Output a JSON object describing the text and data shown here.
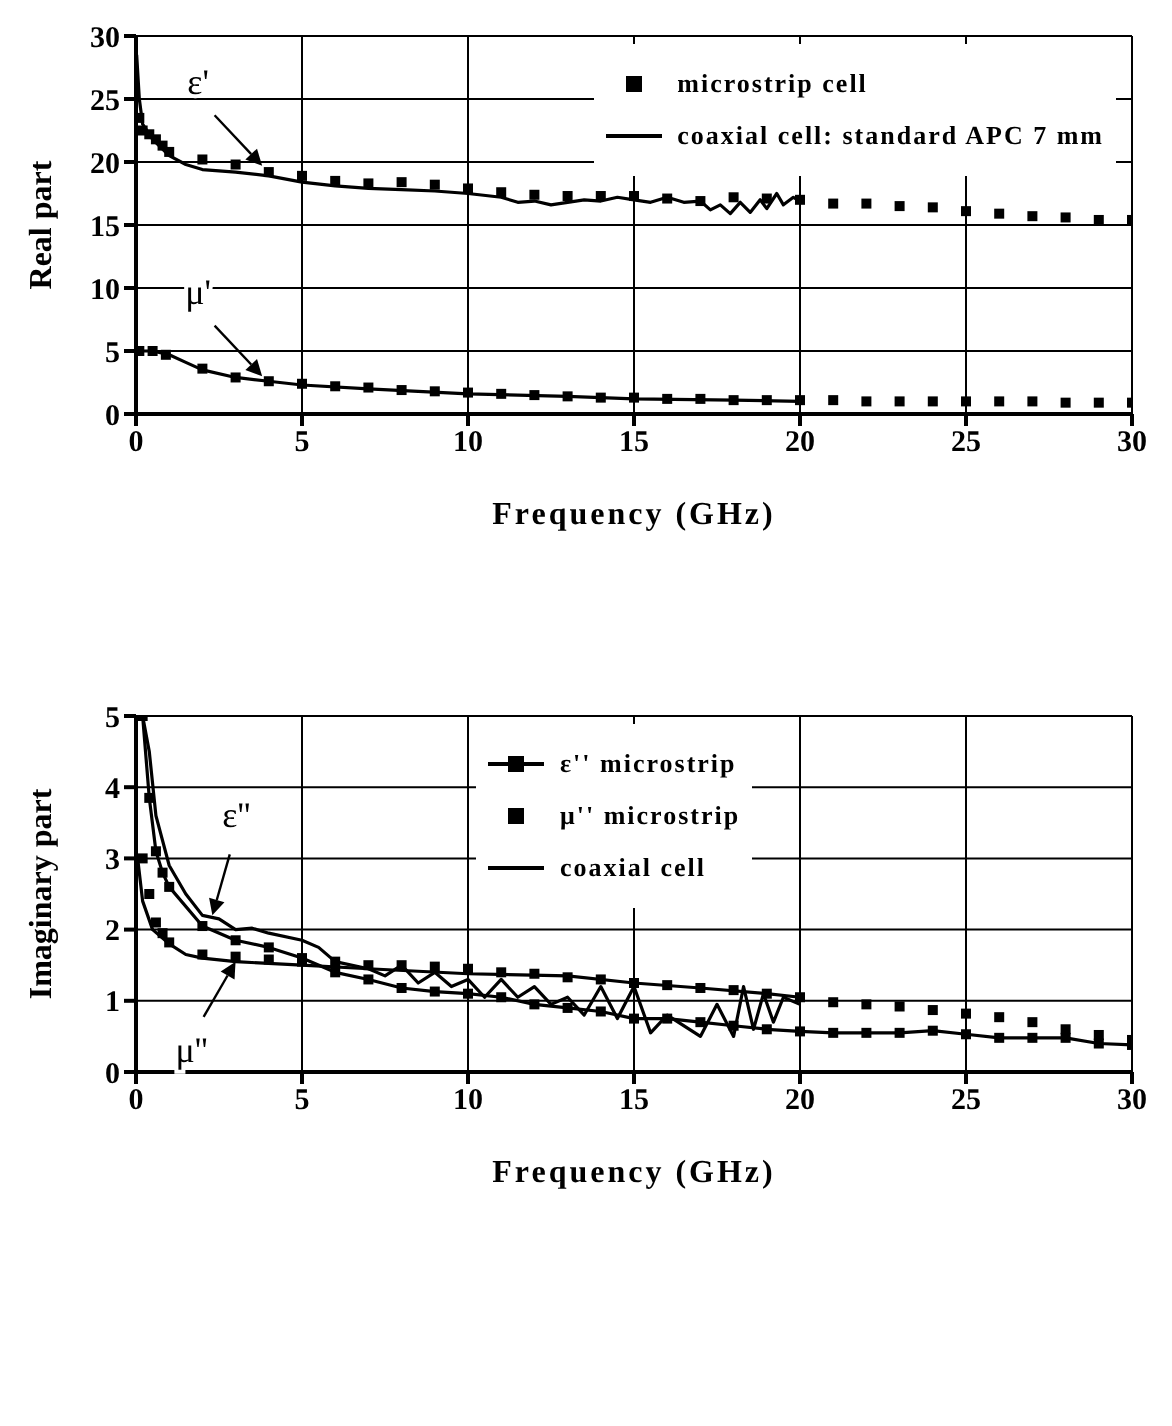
{
  "chart_data": [
    {
      "type": "scatter",
      "xlabel": "Frequency (GHz)",
      "ylabel": "Real part",
      "xlim": [
        0,
        30
      ],
      "ylim": [
        0,
        30
      ],
      "xticks": [
        0,
        5,
        10,
        15,
        20,
        25,
        30
      ],
      "yticks": [
        0,
        5,
        10,
        15,
        20,
        25,
        30
      ],
      "grid": true,
      "legend": "top right",
      "annotations": [
        {
          "text": "ε'",
          "x": 3.8,
          "y": 19.7
        },
        {
          "text": "μ'",
          "x": 3.8,
          "y": 3.0
        }
      ],
      "series": [
        {
          "name": "microstrip cell",
          "marker": "square",
          "color": "#000000",
          "x": [
            0.1,
            0.2,
            0.4,
            0.6,
            0.8,
            1,
            2,
            3,
            4,
            5,
            6,
            7,
            8,
            9,
            10,
            11,
            12,
            13,
            14,
            15,
            16,
            17,
            18,
            19,
            20,
            21,
            22,
            23,
            24,
            25,
            26,
            27,
            28,
            29,
            30
          ],
          "values": [
            23.5,
            22.5,
            22.2,
            21.8,
            21.3,
            20.8,
            20.2,
            19.8,
            19.2,
            18.9,
            18.5,
            18.3,
            18.4,
            18.2,
            17.9,
            17.6,
            17.4,
            17.3,
            17.3,
            17.3,
            17.1,
            16.9,
            17.2,
            17.1,
            17.0,
            16.7,
            16.7,
            16.5,
            16.4,
            16.1,
            15.9,
            15.7,
            15.6,
            15.4,
            15.4
          ]
        },
        {
          "marker": "square",
          "color": "#000000",
          "x": [
            0.1,
            0.5,
            0.9,
            2,
            3,
            4,
            5,
            6,
            7,
            8,
            9,
            10,
            11,
            12,
            13,
            14,
            15,
            16,
            17,
            18,
            19,
            20,
            21,
            22,
            23,
            24,
            25,
            26,
            27,
            28,
            29,
            30
          ],
          "values": [
            5.0,
            5.0,
            4.7,
            3.6,
            2.9,
            2.6,
            2.4,
            2.2,
            2.1,
            1.9,
            1.8,
            1.7,
            1.6,
            1.5,
            1.4,
            1.3,
            1.3,
            1.2,
            1.2,
            1.1,
            1.1,
            1.1,
            1.1,
            1.0,
            1.0,
            1.0,
            1.0,
            1.0,
            1.0,
            0.9,
            0.9,
            0.9
          ]
        },
        {
          "name": "coaxial cell: standard APC 7 mm",
          "type": "line",
          "marker": "none",
          "line_style": "solid",
          "color": "#000000",
          "x": [
            0.02,
            0.1,
            0.2,
            0.5,
            1,
            1.5,
            2,
            3,
            4,
            5,
            6,
            7,
            8,
            9,
            10,
            11,
            11.5,
            12,
            12.5,
            13,
            13.5,
            14,
            14.5,
            15,
            15.5,
            16,
            16.5,
            17,
            17.3,
            17.6,
            17.9,
            18.2,
            18.5,
            18.8,
            19,
            19.3,
            19.5,
            19.8,
            20
          ],
          "values": [
            28.5,
            25,
            23,
            21.8,
            20.5,
            19.8,
            19.4,
            19.2,
            18.9,
            18.4,
            18.1,
            17.9,
            17.8,
            17.7,
            17.5,
            17.2,
            16.8,
            16.9,
            16.6,
            16.8,
            17.0,
            16.9,
            17.2,
            17.0,
            16.8,
            17.2,
            16.8,
            16.9,
            16.2,
            16.6,
            15.9,
            16.8,
            16.0,
            17.0,
            16.3,
            17.5,
            16.6,
            17.2,
            16.9
          ]
        },
        {
          "type": "line",
          "marker": "none",
          "line_style": "solid",
          "color": "#000000",
          "x": [
            0,
            0.5,
            1,
            1.5,
            2,
            3,
            4,
            5,
            7,
            10,
            13,
            15,
            18,
            20
          ],
          "values": [
            5.0,
            5.0,
            4.7,
            4.1,
            3.5,
            2.9,
            2.6,
            2.3,
            2.0,
            1.6,
            1.4,
            1.2,
            1.1,
            1.0
          ]
        }
      ]
    },
    {
      "type": "scatter",
      "xlabel": "Frequency (GHz)",
      "ylabel": "Imaginary part",
      "xlim": [
        0,
        30
      ],
      "ylim": [
        0,
        5
      ],
      "xticks": [
        0,
        5,
        10,
        15,
        20,
        25,
        30
      ],
      "yticks": [
        0,
        1,
        2,
        3,
        4,
        5
      ],
      "grid": true,
      "legend": "top",
      "annotations": [
        {
          "text": "ε''",
          "x": 2.3,
          "y": 2.2
        },
        {
          "text": "μ''",
          "x": 3,
          "y": 1.55
        }
      ],
      "series": [
        {
          "name": "ε'' microstrip",
          "type": "line",
          "marker": "square",
          "line_style": "solid",
          "color": "#000000",
          "x": [
            0.2,
            0.4,
            0.6,
            0.8,
            1,
            2,
            3,
            4,
            5,
            6,
            7,
            8,
            9,
            10,
            11,
            12,
            13,
            14,
            15,
            16,
            17,
            18,
            19,
            20,
            21,
            22,
            23,
            24,
            25,
            26,
            27,
            28,
            29,
            30
          ],
          "values": [
            5.0,
            3.85,
            3.1,
            2.8,
            2.6,
            2.05,
            1.85,
            1.75,
            1.6,
            1.4,
            1.3,
            1.18,
            1.13,
            1.1,
            1.05,
            0.95,
            0.9,
            0.85,
            0.75,
            0.75,
            0.7,
            0.65,
            0.6,
            0.57,
            0.55,
            0.55,
            0.55,
            0.58,
            0.53,
            0.48,
            0.48,
            0.48,
            0.4,
            0.38
          ]
        },
        {
          "name": "μ'' microstrip",
          "marker": "square",
          "color": "#000000",
          "x": [
            0.2,
            0.4,
            0.6,
            0.8,
            1,
            2,
            3,
            4,
            5,
            6,
            7,
            8,
            9,
            10,
            11,
            12,
            13,
            14,
            15,
            16,
            17,
            18,
            19,
            20,
            21,
            22,
            23,
            24,
            25,
            26,
            27,
            28,
            29,
            30
          ],
          "values": [
            3.0,
            2.5,
            2.1,
            1.95,
            1.82,
            1.65,
            1.62,
            1.58,
            1.55,
            1.55,
            1.5,
            1.5,
            1.48,
            1.45,
            1.4,
            1.38,
            1.33,
            1.3,
            1.25,
            1.22,
            1.18,
            1.15,
            1.1,
            1.05,
            0.98,
            0.95,
            0.92,
            0.87,
            0.82,
            0.77,
            0.7,
            0.6,
            0.52,
            0.45
          ]
        },
        {
          "name": "coaxial cell",
          "type": "line",
          "marker": "none",
          "line_style": "solid",
          "color": "#000000",
          "x": [
            0.2,
            0.4,
            0.6,
            1,
            1.5,
            2,
            2.5,
            3,
            3.5,
            4,
            5,
            5.5,
            6,
            7,
            7.5,
            8,
            8.5,
            9,
            9.5,
            10,
            10.5,
            11,
            11.5,
            12,
            12.5,
            13,
            13.5,
            14,
            14.5,
            15,
            15.5,
            16,
            17,
            17.5,
            18,
            18.3,
            18.6,
            18.9,
            19.2,
            19.5,
            20
          ],
          "values": [
            5.0,
            4.5,
            3.6,
            2.9,
            2.5,
            2.2,
            2.15,
            2.0,
            2.02,
            1.95,
            1.85,
            1.75,
            1.55,
            1.45,
            1.35,
            1.5,
            1.25,
            1.4,
            1.2,
            1.3,
            1.05,
            1.3,
            1.05,
            1.2,
            0.95,
            1.05,
            0.8,
            1.2,
            0.75,
            1.2,
            0.55,
            0.8,
            0.5,
            0.95,
            0.5,
            1.2,
            0.6,
            1.1,
            0.7,
            1.05,
            0.95
          ]
        },
        {
          "type": "line",
          "marker": "none",
          "line_style": "solid",
          "color": "#000000",
          "x": [
            0.05,
            0.2,
            0.5,
            1,
            1.5,
            2,
            3,
            5,
            7,
            10,
            13,
            15,
            17,
            19,
            20
          ],
          "values": [
            3.0,
            2.4,
            2.0,
            1.8,
            1.65,
            1.6,
            1.55,
            1.5,
            1.45,
            1.38,
            1.35,
            1.25,
            1.18,
            1.1,
            1.05
          ]
        }
      ]
    }
  ]
}
